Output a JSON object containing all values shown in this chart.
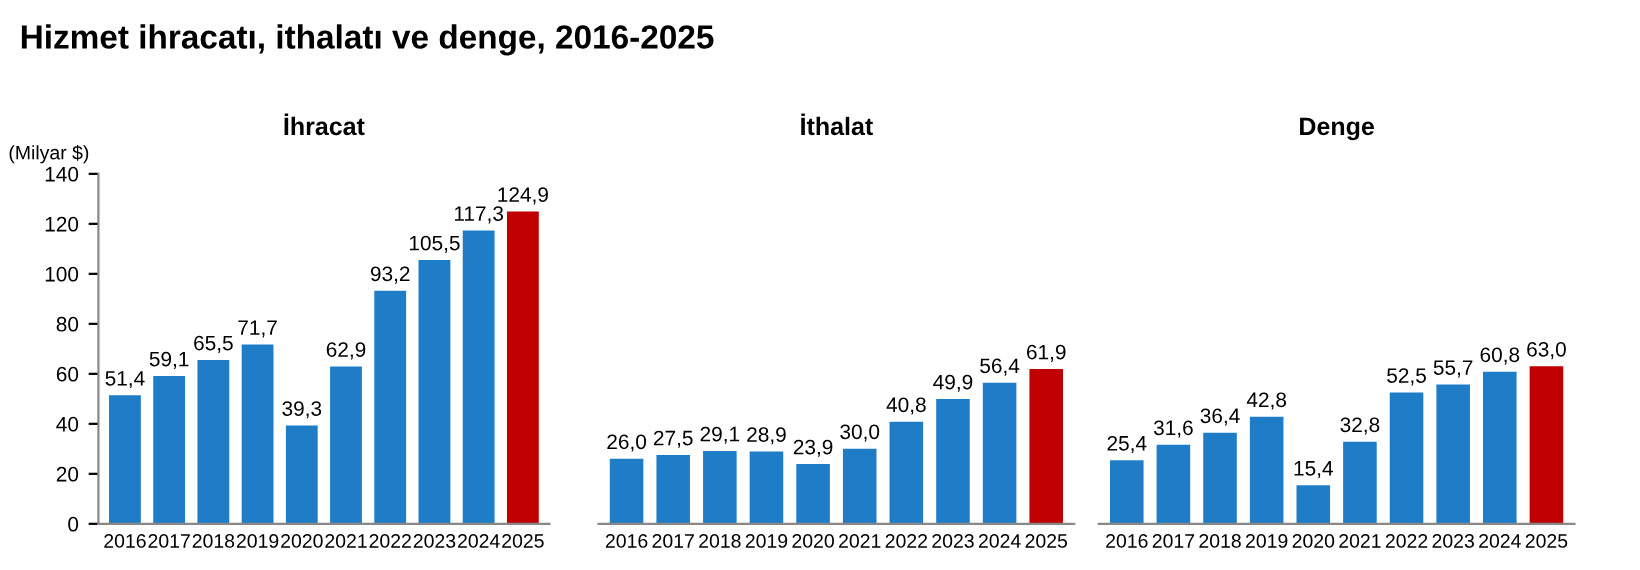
{
  "chart_data": [
    {
      "type": "bar",
      "title": "İhracat",
      "ylabel": "(Milyar $)",
      "annotations": [
        "Hizmet ihracatı, ithalatı ve denge, 2016-2025"
      ],
      "categories": [
        "2016",
        "2017",
        "2018",
        "2019",
        "2020",
        "2021",
        "2022",
        "2023",
        "2024",
        "2025"
      ],
      "values": [
        51.4,
        59.1,
        65.5,
        71.7,
        39.3,
        62.9,
        93.2,
        105.5,
        117.3,
        124.9
      ],
      "value_labels": [
        "51,4",
        "59,1",
        "65,5",
        "71,7",
        "39,3",
        "62,9",
        "93,2",
        "105,5",
        "117,3",
        "124,9"
      ],
      "colors": [
        "#1f7dc8",
        "#1f7dc8",
        "#1f7dc8",
        "#1f7dc8",
        "#1f7dc8",
        "#1f7dc8",
        "#1f7dc8",
        "#1f7dc8",
        "#1f7dc8",
        "#c00000"
      ],
      "ylim": [
        0,
        140
      ],
      "yticks": [
        0,
        20,
        40,
        60,
        80,
        100,
        120,
        140
      ]
    },
    {
      "type": "bar",
      "title": "İthalat",
      "categories": [
        "2016",
        "2017",
        "2018",
        "2019",
        "2020",
        "2021",
        "2022",
        "2023",
        "2024",
        "2025"
      ],
      "values": [
        26.0,
        27.5,
        29.1,
        28.9,
        23.9,
        30.0,
        40.8,
        49.9,
        56.4,
        61.9
      ],
      "value_labels": [
        "26,0",
        "27,5",
        "29,1",
        "28,9",
        "23,9",
        "30,0",
        "40,8",
        "49,9",
        "56,4",
        "61,9"
      ],
      "colors": [
        "#1f7dc8",
        "#1f7dc8",
        "#1f7dc8",
        "#1f7dc8",
        "#1f7dc8",
        "#1f7dc8",
        "#1f7dc8",
        "#1f7dc8",
        "#1f7dc8",
        "#c00000"
      ],
      "ylim": [
        0,
        140
      ],
      "tick_labels": "x"
    },
    {
      "type": "bar",
      "title": "Denge",
      "categories": [
        "2016",
        "2017",
        "2018",
        "2019",
        "2020",
        "2021",
        "2022",
        "2023",
        "2024",
        "2025"
      ],
      "values": [
        25.4,
        31.6,
        36.4,
        42.8,
        15.4,
        32.8,
        52.5,
        55.7,
        60.8,
        63.0
      ],
      "value_labels": [
        "25,4",
        "31,6",
        "36,4",
        "42,8",
        "15,4",
        "32,8",
        "52,5",
        "55,7",
        "60,8",
        "63,0"
      ],
      "colors": [
        "#1f7dc8",
        "#1f7dc8",
        "#1f7dc8",
        "#1f7dc8",
        "#1f7dc8",
        "#1f7dc8",
        "#1f7dc8",
        "#1f7dc8",
        "#1f7dc8",
        "#c00000"
      ],
      "ylim": [
        0,
        140
      ],
      "tick_labels": "x"
    }
  ]
}
